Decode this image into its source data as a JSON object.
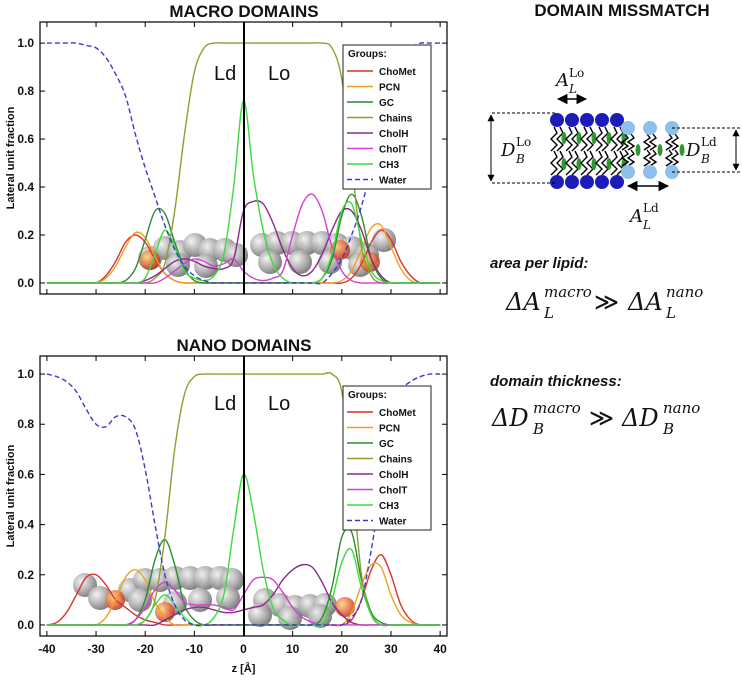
{
  "chart_data": [
    {
      "type": "line",
      "title": "MACRO DOMAINS",
      "y_label": "Lateral unit fraction",
      "xlim": [
        -41.4,
        41.4
      ],
      "ylim": [
        -0.046,
        1.088
      ],
      "xticks": [
        -40,
        -30,
        -20,
        -10,
        0,
        10,
        20,
        30,
        40
      ],
      "xtick_labels": false,
      "yticks": [
        {
          "value": 0,
          "label": "0.0"
        },
        0.2,
        0.4,
        0.6,
        0.8,
        {
          "value": 1,
          "label": "1.0"
        }
      ],
      "legend": "upper right",
      "legend_title": "Groups:",
      "annotations": [
        "Ld",
        "Lo"
      ],
      "x": [
        -40,
        -38,
        -36,
        -34,
        -32,
        -30,
        -28,
        -26,
        -24,
        -22,
        -20,
        -18,
        -16,
        -14,
        -12,
        -10,
        -8,
        -6,
        -4,
        -2,
        0,
        2,
        4,
        6,
        8,
        10,
        12,
        14,
        16,
        18,
        20,
        22,
        24,
        26,
        28,
        30,
        32,
        34,
        36,
        38,
        40
      ],
      "series": [
        {
          "name": "ChoMet",
          "color": "#d9342b",
          "dash": "solid",
          "values": [
            0,
            0,
            0,
            0,
            0,
            0,
            0.03,
            0.09,
            0.17,
            0.2,
            0.17,
            0.1,
            0.04,
            0.01,
            0,
            0,
            0,
            0,
            0,
            0,
            0,
            0,
            0,
            0,
            0,
            0,
            0,
            0,
            0,
            0,
            0,
            0.02,
            0.08,
            0.17,
            0.22,
            0.18,
            0.09,
            0.03,
            0,
            0,
            0
          ]
        },
        {
          "name": "PCN",
          "color": "#f0a020",
          "dash": "solid",
          "values": [
            0,
            0,
            0,
            0,
            0,
            0,
            0.02,
            0.07,
            0.15,
            0.21,
            0.19,
            0.11,
            0.04,
            0.01,
            0,
            0,
            0,
            0,
            0,
            0,
            0,
            0,
            0,
            0,
            0,
            0,
            0,
            0,
            0,
            0,
            0.01,
            0.05,
            0.14,
            0.23,
            0.24,
            0.15,
            0.06,
            0.01,
            0,
            0,
            0
          ]
        },
        {
          "name": "GC",
          "color": "#2e8b2e",
          "dash": "solid",
          "values": [
            0,
            0,
            0,
            0,
            0,
            0,
            0,
            0,
            0.01,
            0.06,
            0.18,
            0.3,
            0.29,
            0.17,
            0.06,
            0.01,
            0,
            0,
            0,
            0,
            0,
            0,
            0,
            0,
            0,
            0,
            0,
            0,
            0.02,
            0.1,
            0.28,
            0.37,
            0.28,
            0.1,
            0.02,
            0,
            0,
            0,
            0,
            0,
            0
          ]
        },
        {
          "name": "Chains",
          "color": "#8f9f2f",
          "dash": "solid",
          "values": [
            0,
            0,
            0,
            0,
            0,
            0,
            0,
            0,
            0,
            0,
            0,
            0.02,
            0.08,
            0.3,
            0.62,
            0.88,
            0.98,
            1,
            1,
            1,
            1,
            1,
            1,
            1,
            1,
            1,
            1,
            1,
            1,
            0.98,
            0.85,
            0.5,
            0.15,
            0.03,
            0,
            0,
            0,
            0,
            0,
            0,
            0
          ]
        },
        {
          "name": "CholH",
          "color": "#8a2a8a",
          "dash": "solid",
          "values": [
            0,
            0,
            0,
            0,
            0,
            0,
            0,
            0,
            0,
            0,
            0.01,
            0.03,
            0.06,
            0.09,
            0.1,
            0.09,
            0.07,
            0.06,
            0.06,
            0.1,
            0.3,
            0.34,
            0.33,
            0.25,
            0.14,
            0.06,
            0.03,
            0.05,
            0.12,
            0.22,
            0.3,
            0.3,
            0.22,
            0.1,
            0.03,
            0,
            0,
            0,
            0,
            0,
            0
          ]
        },
        {
          "name": "CholT",
          "color": "#d23fd2",
          "dash": "solid",
          "values": [
            0,
            0,
            0,
            0,
            0,
            0,
            0,
            0,
            0,
            0,
            0,
            0,
            0.02,
            0.05,
            0.08,
            0.1,
            0.09,
            0.07,
            0.08,
            0.1,
            0.05,
            0.02,
            0.01,
            0.02,
            0.05,
            0.2,
            0.33,
            0.37,
            0.3,
            0.15,
            0.05,
            0.01,
            0,
            0,
            0,
            0,
            0,
            0,
            0,
            0,
            0
          ]
        },
        {
          "name": "CH3",
          "color": "#3ddc3d",
          "dash": "solid",
          "values": [
            0,
            0,
            0,
            0,
            0,
            0,
            0,
            0,
            0,
            0,
            0.02,
            0.12,
            0.22,
            0.15,
            0.05,
            0.02,
            0.01,
            0.03,
            0.12,
            0.4,
            0.76,
            0.45,
            0.22,
            0.08,
            0.02,
            0,
            0,
            0,
            0.02,
            0.12,
            0.3,
            0.33,
            0.18,
            0.05,
            0.01,
            0,
            0,
            0,
            0,
            0,
            0
          ]
        },
        {
          "name": "Water",
          "color": "#3a3ad0",
          "dash": "dashed",
          "values": [
            1,
            1,
            1,
            1,
            0.99,
            0.98,
            0.94,
            0.87,
            0.78,
            0.62,
            0.48,
            0.36,
            0.24,
            0.14,
            0.07,
            0.03,
            0.01,
            0,
            0,
            0,
            0,
            0,
            0,
            0,
            0,
            0,
            0,
            0,
            0,
            0.04,
            0.1,
            0.2,
            0.32,
            0.48,
            0.66,
            0.83,
            0.94,
            0.98,
            1,
            1,
            1
          ]
        }
      ]
    },
    {
      "type": "line",
      "title": "NANO DOMAINS",
      "y_label": "Lateral unit fraction",
      "x_label": "z  [Å]",
      "xlim": [
        -41.4,
        41.4
      ],
      "ylim": [
        -0.044,
        1.072
      ],
      "xticks": [
        -40,
        -30,
        -20,
        -10,
        0,
        10,
        20,
        30,
        40
      ],
      "xtick_labels": true,
      "yticks": [
        {
          "value": 0,
          "label": "0.0"
        },
        0.2,
        0.4,
        0.6,
        0.8,
        {
          "value": 1,
          "label": "1.0"
        }
      ],
      "legend": "upper right",
      "legend_title": "Groups:",
      "annotations": [
        "Ld",
        "Lo"
      ],
      "x": [
        -40,
        -38,
        -36,
        -34,
        -32,
        -30,
        -28,
        -26,
        -24,
        -22,
        -20,
        -18,
        -16,
        -14,
        -12,
        -10,
        -8,
        -6,
        -4,
        -2,
        0,
        2,
        4,
        6,
        8,
        10,
        12,
        14,
        16,
        18,
        20,
        22,
        24,
        26,
        28,
        30,
        32,
        34,
        36,
        38,
        40
      ],
      "series": [
        {
          "name": "ChoMet",
          "color": "#d9342b",
          "dash": "solid",
          "values": [
            0,
            0.01,
            0.05,
            0.12,
            0.19,
            0.2,
            0.16,
            0.1,
            0.07,
            0.04,
            0.02,
            0.01,
            0,
            0,
            0,
            0,
            0,
            0,
            0,
            0,
            0,
            0,
            0,
            0,
            0,
            0,
            0,
            0,
            0,
            0,
            0,
            0.02,
            0.1,
            0.22,
            0.28,
            0.2,
            0.08,
            0.02,
            0,
            0,
            0
          ]
        },
        {
          "name": "PCN",
          "color": "#f0a020",
          "dash": "solid",
          "values": [
            0,
            0,
            0,
            0,
            0,
            0,
            0.03,
            0.1,
            0.19,
            0.22,
            0.18,
            0.09,
            0.03,
            0,
            0,
            0,
            0,
            0,
            0,
            0,
            0,
            0,
            0,
            0,
            0,
            0,
            0,
            0,
            0,
            0,
            0,
            0.05,
            0.16,
            0.24,
            0.23,
            0.12,
            0.04,
            0.01,
            0,
            0,
            0
          ]
        },
        {
          "name": "GC",
          "color": "#2e8b2e",
          "dash": "solid",
          "values": [
            0,
            0,
            0,
            0,
            0,
            0,
            0,
            0,
            0,
            0.02,
            0.1,
            0.26,
            0.34,
            0.24,
            0.08,
            0.02,
            0,
            0,
            0,
            0,
            0,
            0,
            0,
            0,
            0,
            0,
            0,
            0,
            0.03,
            0.15,
            0.35,
            0.37,
            0.18,
            0.05,
            0.01,
            0,
            0,
            0,
            0,
            0,
            0
          ]
        },
        {
          "name": "Chains",
          "color": "#8f9f2f",
          "dash": "solid",
          "values": [
            0,
            0,
            0,
            0,
            0,
            0,
            0,
            0,
            0,
            0,
            0.02,
            0.1,
            0.35,
            0.7,
            0.92,
            0.99,
            1,
            1,
            1,
            1,
            1,
            1,
            1,
            1,
            1,
            1,
            1,
            1,
            1,
            1,
            0.93,
            0.6,
            0.2,
            0.04,
            0,
            0,
            0,
            0,
            0,
            0,
            0
          ]
        },
        {
          "name": "CholH",
          "color": "#8a2a8a",
          "dash": "solid",
          "values": [
            0,
            0,
            0,
            0,
            0,
            0,
            0,
            0,
            0,
            0,
            0,
            0,
            0.02,
            0.04,
            0.06,
            0.07,
            0.07,
            0.06,
            0.05,
            0.05,
            0.06,
            0.07,
            0.08,
            0.12,
            0.18,
            0.22,
            0.24,
            0.23,
            0.17,
            0.09,
            0.04,
            0.01,
            0,
            0,
            0,
            0,
            0,
            0,
            0,
            0,
            0
          ]
        },
        {
          "name": "CholT",
          "color": "#d23fd2",
          "dash": "solid",
          "values": [
            0,
            0,
            0,
            0,
            0,
            0,
            0,
            0,
            0,
            0.02,
            0.07,
            0.14,
            0.17,
            0.14,
            0.09,
            0.08,
            0.08,
            0.08,
            0.07,
            0.06,
            0.12,
            0.18,
            0.19,
            0.18,
            0.13,
            0.07,
            0.03,
            0.01,
            0,
            0,
            0,
            0,
            0,
            0,
            0,
            0,
            0,
            0,
            0,
            0,
            0
          ]
        },
        {
          "name": "CH3",
          "color": "#3ddc3d",
          "dash": "solid",
          "values": [
            0,
            0,
            0,
            0,
            0,
            0,
            0,
            0,
            0,
            0,
            0.02,
            0.08,
            0.12,
            0.08,
            0.03,
            0,
            0,
            0.03,
            0.12,
            0.38,
            0.6,
            0.45,
            0.22,
            0.07,
            0.02,
            0,
            0,
            0,
            0,
            0.1,
            0.25,
            0.3,
            0.15,
            0.04,
            0,
            0,
            0,
            0,
            0,
            0,
            0
          ]
        },
        {
          "name": "Water",
          "color": "#3a3ad0",
          "dash": "dashed",
          "values": [
            1,
            0.99,
            0.97,
            0.93,
            0.86,
            0.8,
            0.79,
            0.83,
            0.83,
            0.78,
            0.62,
            0.4,
            0.2,
            0.08,
            0.02,
            0,
            0,
            0,
            0,
            0,
            0,
            0,
            0,
            0,
            0,
            0,
            0,
            0,
            0,
            0,
            0,
            0.03,
            0.1,
            0.3,
            0.55,
            0.8,
            0.93,
            0.97,
            0.99,
            1,
            1
          ]
        }
      ]
    }
  ],
  "mismatch": {
    "title": "DOMAIN MISSMATCH",
    "a_lo": {
      "base": "A",
      "sub": "L",
      "sup": "Lo"
    },
    "d_lo": {
      "base": "D",
      "sub": "B",
      "sup": "Lo"
    },
    "d_ld": {
      "base": "D",
      "sub": "B",
      "sup": "Ld"
    },
    "a_ld": {
      "base": "A",
      "sub": "L",
      "sup": "Ld"
    },
    "area_label": "area per lipid:",
    "area_relation": {
      "lhs": {
        "base": "ΔA",
        "sub": "L",
        "sup": "macro"
      },
      "op": "≫",
      "rhs": {
        "base": "ΔA",
        "sub": "L",
        "sup": "nano"
      }
    },
    "thickness_label": "domain thickness:",
    "thickness_relation": {
      "lhs": {
        "base": "ΔD",
        "sub": "B",
        "sup": "macro"
      },
      "op": "≫",
      "rhs": {
        "base": "ΔD",
        "sub": "B",
        "sup": "nano"
      }
    }
  }
}
